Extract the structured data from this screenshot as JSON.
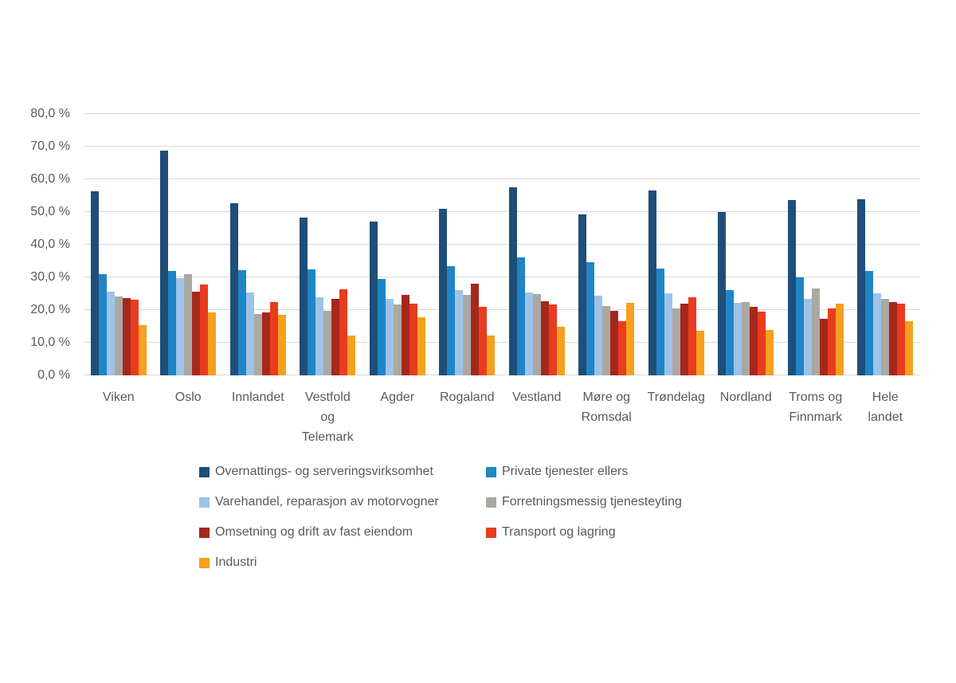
{
  "page": {
    "background": "#ffffff"
  },
  "colors": {
    "grid": "#d9d9d9",
    "axis_text": "#595959",
    "legend_text": "#595959"
  },
  "chart_data": {
    "type": "bar",
    "title": "",
    "xlabel": "",
    "ylabel": "",
    "ylim": [
      0,
      80
    ],
    "ytick_step": 10,
    "ytick_labels": [
      "0,0 %",
      "10,0 %",
      "20,0 %",
      "30,0 %",
      "40,0 %",
      "50,0 %",
      "60,0 %",
      "70,0 %",
      "80,0 %"
    ],
    "grid": true,
    "legend_position": "bottom",
    "legend_columns": 2,
    "categories": [
      "Viken",
      "Oslo",
      "Innlandet",
      "Vestfold og Telemark",
      "Agder",
      "Rogaland",
      "Vestland",
      "Møre og Romsdal",
      "Trøndelag",
      "Nordland",
      "Troms og Finnmark",
      "Hele landet"
    ],
    "category_label_lines": [
      [
        "Viken"
      ],
      [
        "Oslo"
      ],
      [
        "Innlandet"
      ],
      [
        "Vestfold",
        "og",
        "Telemark"
      ],
      [
        "Agder"
      ],
      [
        "Rogaland"
      ],
      [
        "Vestland"
      ],
      [
        "Møre og",
        "Romsdal"
      ],
      [
        "Trøndelag"
      ],
      [
        "Nordland"
      ],
      [
        "Troms og",
        "Finnmark"
      ],
      [
        "Hele",
        "landet"
      ]
    ],
    "series": [
      {
        "name": "Overnattings- og serveringsvirksomhet",
        "color": "#1F4E79",
        "values": [
          56.4,
          68.7,
          52.6,
          48.4,
          47.1,
          51.0,
          57.5,
          49.3,
          56.6,
          50.0,
          53.6,
          53.8
        ]
      },
      {
        "name": "Private tjenester ellers",
        "color": "#2085C6",
        "values": [
          30.9,
          31.9,
          32.3,
          32.5,
          29.5,
          33.4,
          36.1,
          34.6,
          32.7,
          26.1,
          30.1,
          32.0
        ]
      },
      {
        "name": "Varehandel, reparasjon av motorvogner",
        "color": "#9DC3E6",
        "values": [
          25.7,
          29.7,
          25.4,
          23.9,
          23.5,
          26.0,
          25.4,
          24.4,
          25.2,
          22.1,
          23.3,
          25.1
        ]
      },
      {
        "name": "Forretningsmessig tjenesteyting",
        "color": "#ABA8A2",
        "values": [
          24.2,
          31.0,
          18.9,
          19.8,
          21.6,
          24.7,
          24.9,
          21.3,
          20.6,
          22.5,
          26.6,
          23.3
        ]
      },
      {
        "name": "Omsetning og drift av fast eiendom",
        "color": "#A6281C",
        "values": [
          23.7,
          25.5,
          19.3,
          23.3,
          24.6,
          28.1,
          22.8,
          19.8,
          21.9,
          21.0,
          17.3,
          22.4
        ]
      },
      {
        "name": "Transport og lagring",
        "color": "#E83C1E",
        "values": [
          23.2,
          27.8,
          22.5,
          26.4,
          22.0,
          21.0,
          21.6,
          16.7,
          23.8,
          19.4,
          20.6,
          22.0
        ]
      },
      {
        "name": "Industri",
        "color": "#F5A01E",
        "values": [
          15.4,
          19.3,
          18.6,
          12.2,
          17.9,
          12.1,
          14.9,
          22.2,
          13.7,
          13.9,
          21.9,
          16.6
        ]
      }
    ]
  }
}
